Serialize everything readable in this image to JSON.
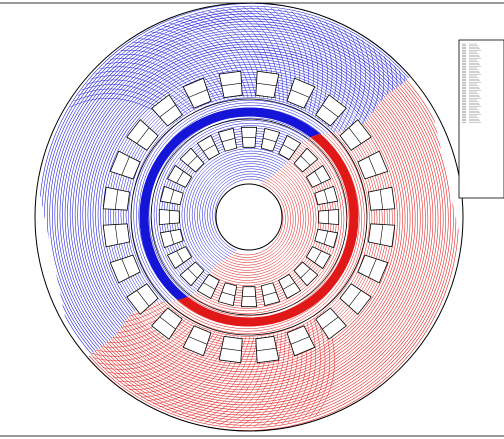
{
  "figure": {
    "colors": {
      "north_field": "#1515d8",
      "south_field": "#e01818",
      "outline": "#000000",
      "background": "#ffffff",
      "frame_line": "#333333"
    },
    "regions": [
      {
        "name": "outer-stator-yoke",
        "color": "#000000"
      },
      {
        "name": "outer-stator-slots",
        "count": 24
      },
      {
        "name": "air-gaps",
        "count": 2
      },
      {
        "name": "rotor-ring"
      },
      {
        "name": "inner-stator-slots",
        "count": 24
      },
      {
        "name": "inner-stator-yoke"
      },
      {
        "name": "shaft-bore"
      }
    ],
    "field_polarity": {
      "upper_right": "north_field",
      "lower_left": "south_field"
    }
  },
  "legend": {
    "rows": 50,
    "text_legible": false
  }
}
